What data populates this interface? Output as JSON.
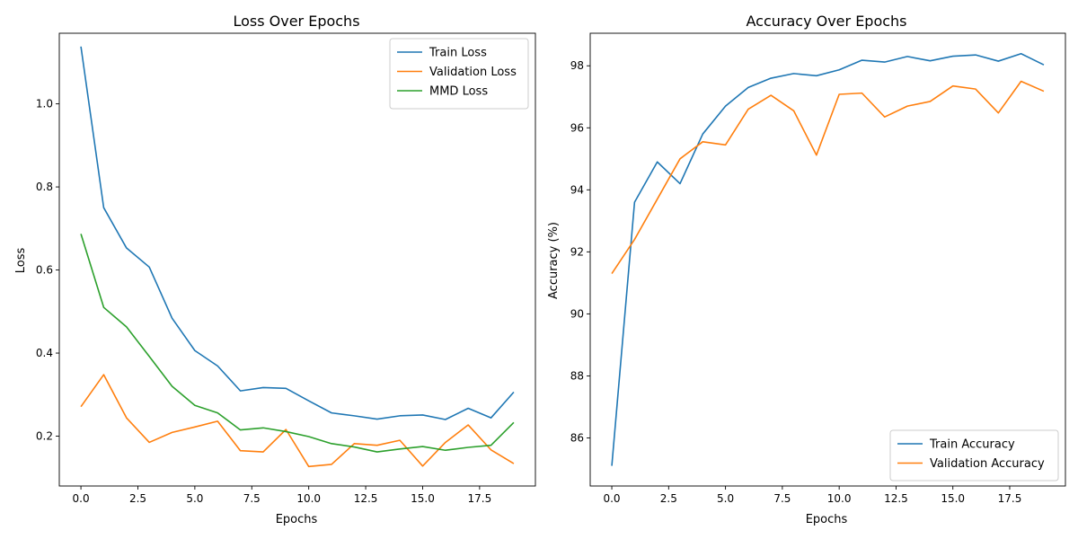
{
  "chart_data": [
    {
      "type": "line",
      "title": "Loss Over Epochs",
      "xlabel": "Epochs",
      "ylabel": "Loss",
      "xlim": [
        -0.95,
        19.95
      ],
      "ylim": [
        0.08,
        1.17
      ],
      "xticks": [
        0,
        2.5,
        5,
        7.5,
        10,
        12.5,
        15,
        17.5
      ],
      "xtick_labels": [
        "0.0",
        "2.5",
        "5.0",
        "7.5",
        "10.0",
        "12.5",
        "15.0",
        "17.5"
      ],
      "yticks": [
        0.2,
        0.4,
        0.6,
        0.8,
        1.0
      ],
      "ytick_labels": [
        "0.2",
        "0.4",
        "0.6",
        "0.8",
        "1.0"
      ],
      "grid": false,
      "legend_position": "top-right",
      "x": [
        0,
        1,
        2,
        3,
        4,
        5,
        6,
        7,
        8,
        9,
        10,
        11,
        12,
        13,
        14,
        15,
        16,
        17,
        18,
        19
      ],
      "series": [
        {
          "name": "Train Loss",
          "color": "#1f77b4",
          "values": [
            1.138,
            0.75,
            0.653,
            0.607,
            0.484,
            0.406,
            0.369,
            0.309,
            0.317,
            0.315,
            0.285,
            0.256,
            0.249,
            0.241,
            0.249,
            0.251,
            0.24,
            0.267,
            0.244,
            0.306
          ]
        },
        {
          "name": "Validation Loss",
          "color": "#ff7f0e",
          "values": [
            0.271,
            0.348,
            0.244,
            0.185,
            0.209,
            0.222,
            0.236,
            0.165,
            0.162,
            0.216,
            0.127,
            0.132,
            0.182,
            0.178,
            0.19,
            0.128,
            0.185,
            0.227,
            0.167,
            0.134
          ]
        },
        {
          "name": "MMD Loss",
          "color": "#2ca02c",
          "values": [
            0.687,
            0.51,
            0.463,
            0.392,
            0.32,
            0.274,
            0.256,
            0.215,
            0.22,
            0.211,
            0.199,
            0.182,
            0.174,
            0.162,
            0.169,
            0.175,
            0.166,
            0.173,
            0.178,
            0.233
          ]
        }
      ]
    },
    {
      "type": "line",
      "title": "Accuracy Over Epochs",
      "xlabel": "Epochs",
      "ylabel": "Accuracy (%)",
      "xlim": [
        -0.95,
        19.95
      ],
      "ylim": [
        84.45,
        99.05
      ],
      "xticks": [
        0,
        2.5,
        5,
        7.5,
        10,
        12.5,
        15,
        17.5
      ],
      "xtick_labels": [
        "0.0",
        "2.5",
        "5.0",
        "7.5",
        "10.0",
        "12.5",
        "15.0",
        "17.5"
      ],
      "yticks": [
        86,
        88,
        90,
        92,
        94,
        96,
        98
      ],
      "ytick_labels": [
        "86",
        "88",
        "90",
        "92",
        "94",
        "96",
        "98"
      ],
      "grid": false,
      "legend_position": "bottom-right",
      "x": [
        0,
        1,
        2,
        3,
        4,
        5,
        6,
        7,
        8,
        9,
        10,
        11,
        12,
        13,
        14,
        15,
        16,
        17,
        18,
        19
      ],
      "series": [
        {
          "name": "Train Accuracy",
          "color": "#1f77b4",
          "values": [
            85.1,
            93.6,
            94.9,
            94.2,
            95.8,
            96.7,
            97.3,
            97.6,
            97.75,
            97.68,
            97.87,
            98.18,
            98.12,
            98.3,
            98.16,
            98.31,
            98.35,
            98.15,
            98.39,
            98.03
          ]
        },
        {
          "name": "Validation Accuracy",
          "color": "#ff7f0e",
          "values": [
            91.3,
            92.4,
            93.7,
            95.0,
            95.55,
            95.45,
            96.6,
            97.05,
            96.55,
            95.12,
            97.08,
            97.12,
            96.35,
            96.7,
            96.85,
            97.35,
            97.25,
            96.48,
            97.5,
            97.18
          ]
        }
      ]
    }
  ]
}
